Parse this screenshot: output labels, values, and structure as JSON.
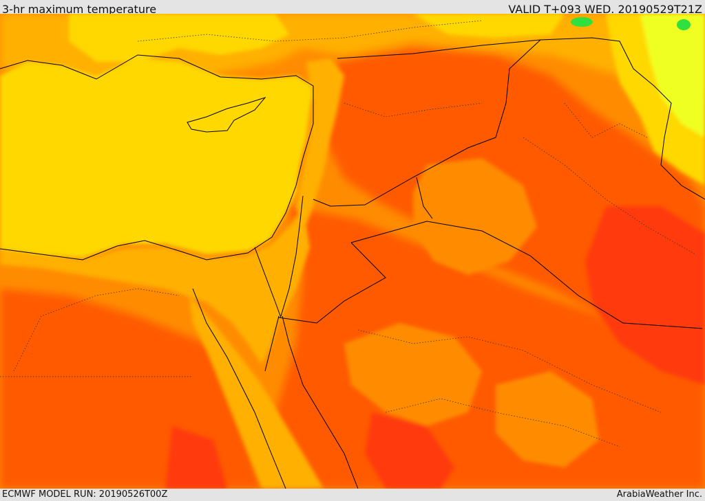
{
  "header": {
    "title": "3-hr maximum temperature",
    "valid": "VALID T+093 WED. 20190529T21Z"
  },
  "footer": {
    "model_run": "ECMWF MODEL RUN: 20190526T00Z",
    "credit": "ArabiaWeather Inc."
  },
  "map": {
    "palette": {
      "yellow": "#ffd800",
      "light_orange": "#ffb000",
      "orange": "#ff8c00",
      "dark_orange": "#ff5a00",
      "red": "#ff3a10",
      "yellow_green": "#f0ff20",
      "green": "#30e040"
    }
  }
}
